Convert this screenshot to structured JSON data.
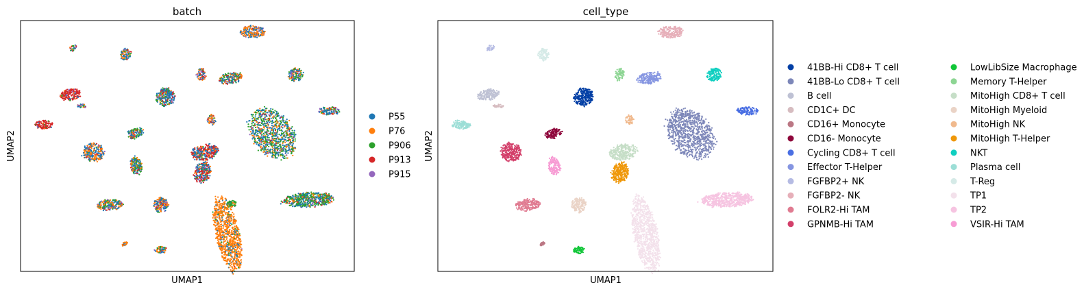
{
  "chart_data": [
    {
      "type": "scatter",
      "title": "batch",
      "xlabel": "UMAP1",
      "ylabel": "UMAP2",
      "xticks": false,
      "yticks": false,
      "legend": {
        "placement": "right",
        "entries": [
          {
            "label": "P55",
            "color": "#1f77b4"
          },
          {
            "label": "P76",
            "color": "#ff7f0e"
          },
          {
            "label": "P906",
            "color": "#2ca02c"
          },
          {
            "label": "P913",
            "color": "#d62728"
          },
          {
            "label": "P915",
            "color": "#9467bd"
          }
        ]
      },
      "clusters": [
        {
          "x": 0.695,
          "y": 0.955,
          "rx": 0.036,
          "ry": 0.024,
          "rot": 0,
          "mix": [
            0.3,
            0.6,
            0.02,
            0.02,
            0.06
          ]
        },
        {
          "x": 0.315,
          "y": 0.865,
          "rx": 0.016,
          "ry": 0.024,
          "rot": 0,
          "mix": [
            0.4,
            0.2,
            0.2,
            0.1,
            0.1
          ]
        },
        {
          "x": 0.315,
          "y": 0.865,
          "rx": 0.0,
          "ry": 0.0,
          "rot": 0,
          "mix": [
            0.2,
            0.2,
            0.2,
            0.2,
            0.2
          ]
        },
        {
          "x": 0.63,
          "y": 0.77,
          "rx": 0.036,
          "ry": 0.022,
          "rot": -10,
          "mix": [
            0.3,
            0.25,
            0.2,
            0.15,
            0.1
          ]
        },
        {
          "x": 0.825,
          "y": 0.785,
          "rx": 0.022,
          "ry": 0.026,
          "rot": -25,
          "mix": [
            0.35,
            0.2,
            0.2,
            0.1,
            0.15
          ]
        },
        {
          "x": 0.542,
          "y": 0.785,
          "rx": 0.014,
          "ry": 0.024,
          "rot": 0,
          "mix": [
            0.3,
            0.2,
            0.2,
            0.2,
            0.1
          ]
        },
        {
          "x": 0.157,
          "y": 0.89,
          "rx": 0.012,
          "ry": 0.01,
          "rot": -30,
          "mix": [
            0.25,
            0.2,
            0.25,
            0.2,
            0.1
          ]
        },
        {
          "x": 0.15,
          "y": 0.705,
          "rx": 0.032,
          "ry": 0.022,
          "rot": -10,
          "mix": [
            0.05,
            0.05,
            0.05,
            0.8,
            0.05
          ]
        },
        {
          "x": 0.435,
          "y": 0.695,
          "rx": 0.029,
          "ry": 0.036,
          "rot": -30,
          "mix": [
            0.5,
            0.1,
            0.2,
            0.1,
            0.1
          ]
        },
        {
          "x": 0.182,
          "y": 0.66,
          "rx": 0.016,
          "ry": 0.008,
          "rot": 0,
          "mix": [
            0.4,
            0.2,
            0.2,
            0.1,
            0.1
          ]
        },
        {
          "x": 0.925,
          "y": 0.64,
          "rx": 0.032,
          "ry": 0.016,
          "rot": 0,
          "mix": [
            0.5,
            0.1,
            0.2,
            0.1,
            0.1
          ]
        },
        {
          "x": 0.07,
          "y": 0.585,
          "rx": 0.027,
          "ry": 0.018,
          "rot": 0,
          "mix": [
            0.05,
            0.05,
            0.05,
            0.8,
            0.05
          ]
        },
        {
          "x": 0.572,
          "y": 0.605,
          "rx": 0.012,
          "ry": 0.02,
          "rot": 0,
          "mix": [
            0.2,
            0.4,
            0.2,
            0.1,
            0.1
          ]
        },
        {
          "x": 0.755,
          "y": 0.55,
          "rx": 0.06,
          "ry": 0.11,
          "rot": -38,
          "mix": [
            0.35,
            0.2,
            0.35,
            0.05,
            0.05
          ]
        },
        {
          "x": 0.345,
          "y": 0.55,
          "rx": 0.025,
          "ry": 0.02,
          "rot": -15,
          "mix": [
            0.35,
            0.15,
            0.3,
            0.1,
            0.1
          ]
        },
        {
          "x": 0.218,
          "y": 0.475,
          "rx": 0.031,
          "ry": 0.036,
          "rot": 0,
          "mix": [
            0.45,
            0.4,
            0.05,
            0.05,
            0.05
          ]
        },
        {
          "x": 0.552,
          "y": 0.475,
          "rx": 0.041,
          "ry": 0.031,
          "rot": -10,
          "mix": [
            0.3,
            0.1,
            0.1,
            0.45,
            0.05
          ]
        },
        {
          "x": 0.347,
          "y": 0.42,
          "rx": 0.018,
          "ry": 0.036,
          "rot": -10,
          "mix": [
            0.35,
            0.2,
            0.3,
            0.1,
            0.05
          ]
        },
        {
          "x": 0.545,
          "y": 0.395,
          "rx": 0.024,
          "ry": 0.042,
          "rot": 25,
          "mix": [
            0.4,
            0.1,
            0.1,
            0.35,
            0.05
          ]
        },
        {
          "x": 0.862,
          "y": 0.285,
          "rx": 0.075,
          "ry": 0.029,
          "rot": -3,
          "mix": [
            0.3,
            0.1,
            0.45,
            0.1,
            0.05
          ]
        },
        {
          "x": 0.268,
          "y": 0.265,
          "rx": 0.038,
          "ry": 0.022,
          "rot": -5,
          "mix": [
            0.4,
            0.3,
            0.15,
            0.05,
            0.1
          ]
        },
        {
          "x": 0.42,
          "y": 0.265,
          "rx": 0.022,
          "ry": 0.03,
          "rot": 0,
          "mix": [
            0.3,
            0.4,
            0.1,
            0.1,
            0.1
          ]
        },
        {
          "x": 0.62,
          "y": 0.15,
          "rx": 0.035,
          "ry": 0.15,
          "rot": -12,
          "mix": [
            0.1,
            0.85,
            0.04,
            0.005,
            0.005
          ]
        },
        {
          "x": 0.633,
          "y": 0.27,
          "rx": 0.015,
          "ry": 0.012,
          "rot": 0,
          "mix": [
            0.1,
            0.1,
            0.7,
            0.05,
            0.05
          ]
        },
        {
          "x": 0.312,
          "y": 0.11,
          "rx": 0.009,
          "ry": 0.006,
          "rot": -30,
          "mix": [
            0.1,
            0.8,
            0.05,
            0.03,
            0.02
          ]
        },
        {
          "x": 0.42,
          "y": 0.085,
          "rx": 0.018,
          "ry": 0.014,
          "rot": 0,
          "mix": [
            0.4,
            0.2,
            0.25,
            0.1,
            0.05
          ]
        }
      ]
    },
    {
      "type": "scatter",
      "title": "cell_type",
      "xlabel": "UMAP1",
      "ylabel": "UMAP2",
      "xticks": false,
      "yticks": false,
      "legend": {
        "placement": "right",
        "columns": 2,
        "entries": [
          {
            "label": "41BB-Hi CD8+ T cell",
            "color": "#023fa5"
          },
          {
            "label": "41BB-Lo CD8+ T cell",
            "color": "#7d87b9"
          },
          {
            "label": "B cell",
            "color": "#bec1d4"
          },
          {
            "label": "CD1C+ DC",
            "color": "#d6bcc0"
          },
          {
            "label": "CD16+ Monocyte",
            "color": "#bb7784"
          },
          {
            "label": "CD16- Monocyte",
            "color": "#8e063b"
          },
          {
            "label": "Cycling CD8+ T cell",
            "color": "#4a6fe3"
          },
          {
            "label": "Effector T-Helper",
            "color": "#8595e1"
          },
          {
            "label": "FGFBP2+ NK",
            "color": "#b5bbe3"
          },
          {
            "label": "FGFBP2- NK",
            "color": "#e6afb9"
          },
          {
            "label": "FOLR2-Hi TAM",
            "color": "#e07b91"
          },
          {
            "label": "GPNMB-Hi TAM",
            "color": "#d33f6a"
          },
          {
            "label": "LowLibSize Macrophage",
            "color": "#11c638"
          },
          {
            "label": "Memory T-Helper",
            "color": "#8dd593"
          },
          {
            "label": "MitoHigh CD8+ T cell",
            "color": "#c6dec7"
          },
          {
            "label": "MitoHigh Myeloid",
            "color": "#ead3c6"
          },
          {
            "label": "MitoHigh NK",
            "color": "#f0b98d"
          },
          {
            "label": "MitoHigh T-Helper",
            "color": "#ef9708"
          },
          {
            "label": "NKT",
            "color": "#0fcfc0"
          },
          {
            "label": "Plasma cell",
            "color": "#9cded6"
          },
          {
            "label": "T-Reg",
            "color": "#d5eae7"
          },
          {
            "label": "TP1",
            "color": "#f3e1eb"
          },
          {
            "label": "TP2",
            "color": "#f6c4e1"
          },
          {
            "label": "VSIR-Hi TAM",
            "color": "#f79cd4"
          }
        ]
      },
      "clusters": [
        {
          "x": 0.695,
          "y": 0.955,
          "rx": 0.036,
          "ry": 0.024,
          "rot": 0,
          "cat": 9
        },
        {
          "x": 0.315,
          "y": 0.865,
          "rx": 0.016,
          "ry": 0.024,
          "rot": 0,
          "cat": 20
        },
        {
          "x": 0.63,
          "y": 0.77,
          "rx": 0.036,
          "ry": 0.022,
          "rot": -10,
          "cat": 7
        },
        {
          "x": 0.825,
          "y": 0.785,
          "rx": 0.022,
          "ry": 0.026,
          "rot": -25,
          "cat": 18
        },
        {
          "x": 0.542,
          "y": 0.785,
          "rx": 0.014,
          "ry": 0.024,
          "rot": 0,
          "cat": 13
        },
        {
          "x": 0.157,
          "y": 0.89,
          "rx": 0.012,
          "ry": 0.01,
          "rot": -30,
          "cat": 8
        },
        {
          "x": 0.15,
          "y": 0.705,
          "rx": 0.032,
          "ry": 0.022,
          "rot": -10,
          "cat": 2
        },
        {
          "x": 0.435,
          "y": 0.695,
          "rx": 0.029,
          "ry": 0.036,
          "rot": -30,
          "cat": 0
        },
        {
          "x": 0.182,
          "y": 0.66,
          "rx": 0.016,
          "ry": 0.008,
          "rot": 0,
          "cat": 3
        },
        {
          "x": 0.925,
          "y": 0.64,
          "rx": 0.032,
          "ry": 0.016,
          "rot": 0,
          "cat": 6
        },
        {
          "x": 0.07,
          "y": 0.585,
          "rx": 0.027,
          "ry": 0.018,
          "rot": 0,
          "cat": 19
        },
        {
          "x": 0.572,
          "y": 0.605,
          "rx": 0.012,
          "ry": 0.02,
          "rot": 0,
          "cat": 16
        },
        {
          "x": 0.755,
          "y": 0.55,
          "rx": 0.06,
          "ry": 0.11,
          "rot": -38,
          "cat": 1
        },
        {
          "x": 0.345,
          "y": 0.55,
          "rx": 0.025,
          "ry": 0.02,
          "rot": -15,
          "cat": 5
        },
        {
          "x": 0.218,
          "y": 0.475,
          "rx": 0.031,
          "ry": 0.036,
          "rot": 0,
          "cat": 11
        },
        {
          "x": 0.552,
          "y": 0.475,
          "rx": 0.041,
          "ry": 0.031,
          "rot": -10,
          "cat": 14
        },
        {
          "x": 0.347,
          "y": 0.42,
          "rx": 0.018,
          "ry": 0.036,
          "rot": -10,
          "cat": 23
        },
        {
          "x": 0.545,
          "y": 0.395,
          "rx": 0.024,
          "ry": 0.042,
          "rot": 25,
          "cat": 17
        },
        {
          "x": 0.862,
          "y": 0.285,
          "rx": 0.075,
          "ry": 0.029,
          "rot": -3,
          "cat": 22
        },
        {
          "x": 0.268,
          "y": 0.265,
          "rx": 0.038,
          "ry": 0.022,
          "rot": -5,
          "cat": 10
        },
        {
          "x": 0.42,
          "y": 0.265,
          "rx": 0.022,
          "ry": 0.03,
          "rot": 0,
          "cat": 15
        },
        {
          "x": 0.62,
          "y": 0.15,
          "rx": 0.035,
          "ry": 0.15,
          "rot": -12,
          "cat": 21
        },
        {
          "x": 0.312,
          "y": 0.11,
          "rx": 0.009,
          "ry": 0.006,
          "rot": -30,
          "cat": 4
        },
        {
          "x": 0.42,
          "y": 0.085,
          "rx": 0.018,
          "ry": 0.014,
          "rot": 0,
          "cat": 12
        }
      ]
    }
  ]
}
